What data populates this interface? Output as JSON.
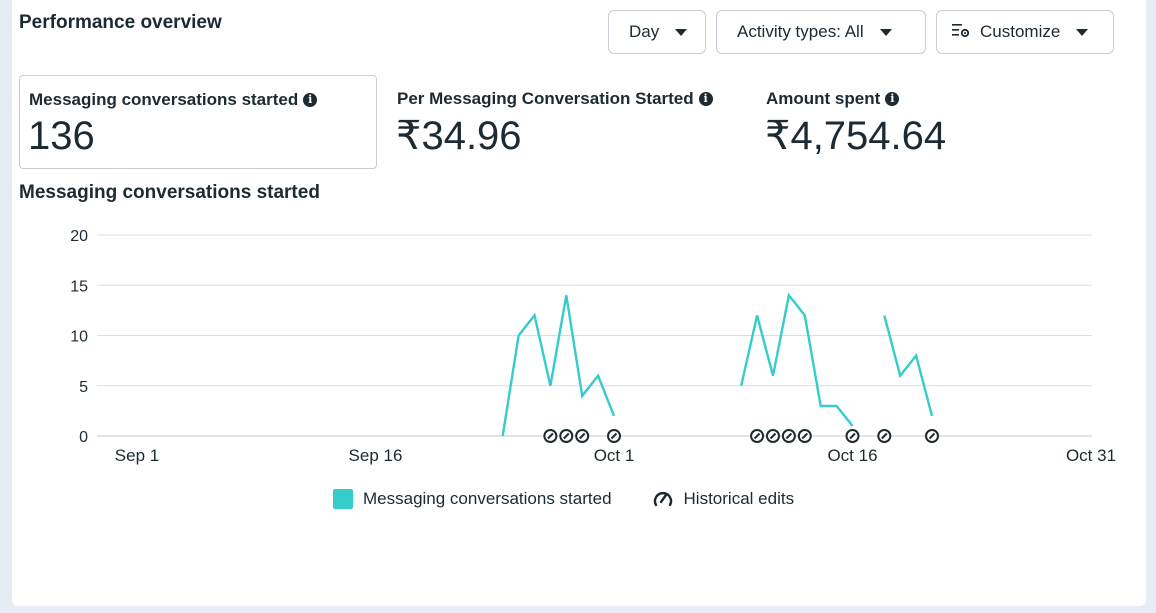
{
  "header": {
    "title": "Performance overview",
    "day_label": "Day",
    "activity_label": "Activity types: All",
    "customize_label": "Customize"
  },
  "metrics": [
    {
      "label": "Messaging conversations started",
      "value": "136"
    },
    {
      "label": "Per Messaging Conversation Started",
      "value": "₹34.96"
    },
    {
      "label": "Amount spent",
      "value": "₹4,754.64"
    }
  ],
  "chart_title": "Messaging conversations started",
  "legend": {
    "series_label": "Messaging conversations started",
    "edits_label": "Historical edits"
  },
  "colors": {
    "series": "#35cccc",
    "grid": "#dadde1",
    "text": "#1c2b33"
  },
  "chart_data": {
    "type": "line",
    "title": "Messaging conversations started",
    "ylim": [
      0,
      20
    ],
    "yticks": [
      0,
      5,
      10,
      15,
      20
    ],
    "xticks": [
      "Sep 1",
      "Sep 16",
      "Oct 1",
      "Oct 16",
      "Oct 31"
    ],
    "xlim": [
      "Sep 1",
      "Oct 31"
    ],
    "grid": true,
    "legend_position": "bottom",
    "series": [
      {
        "name": "Messaging conversations started",
        "segments": [
          [
            [
              "Sep 24",
              0
            ],
            [
              "Sep 25",
              10
            ],
            [
              "Sep 26",
              12
            ],
            [
              "Sep 27",
              5
            ],
            [
              "Sep 28",
              14
            ],
            [
              "Sep 29",
              4
            ],
            [
              "Sep 30",
              6
            ],
            [
              "Oct 1",
              2
            ]
          ],
          [
            [
              "Oct 9",
              5
            ],
            [
              "Oct 10",
              12
            ],
            [
              "Oct 11",
              6
            ],
            [
              "Oct 12",
              14
            ],
            [
              "Oct 13",
              12
            ],
            [
              "Oct 14",
              3
            ],
            [
              "Oct 15",
              3
            ],
            [
              "Oct 16",
              1
            ]
          ],
          [
            [
              "Oct 18",
              12
            ],
            [
              "Oct 19",
              6
            ],
            [
              "Oct 20",
              8
            ],
            [
              "Oct 21",
              2
            ]
          ]
        ]
      }
    ],
    "historical_edits": [
      "Sep 27",
      "Sep 28",
      "Sep 29",
      "Oct 1",
      "Oct 10",
      "Oct 11",
      "Oct 12",
      "Oct 13",
      "Oct 16",
      "Oct 18",
      "Oct 21"
    ]
  }
}
